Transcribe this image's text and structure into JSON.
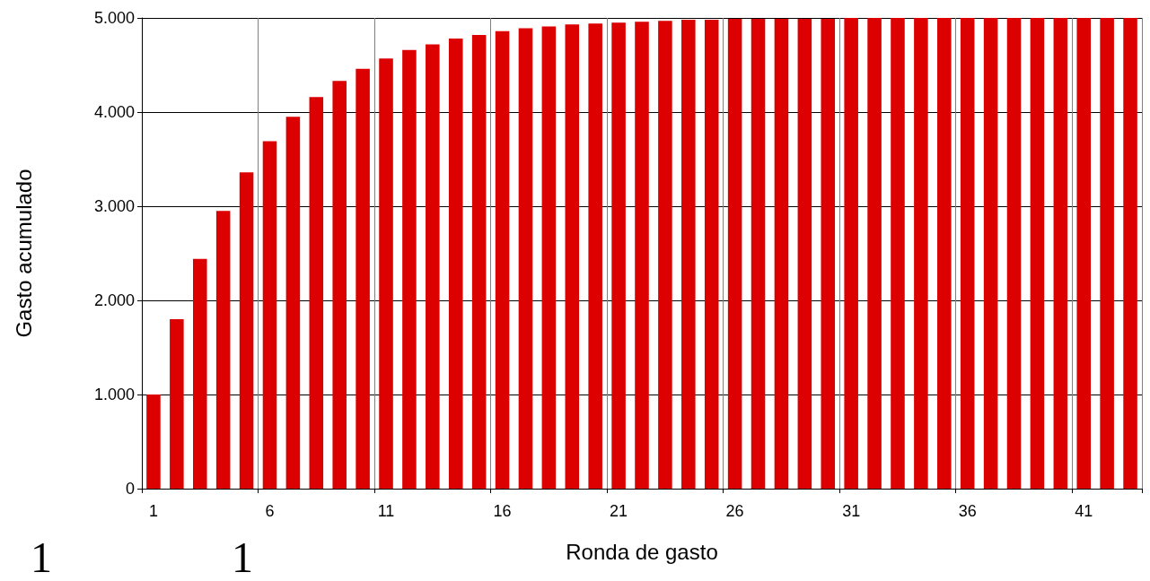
{
  "chart_data": {
    "type": "bar",
    "xlabel": "Ronda de gasto",
    "ylabel": "Gasto acumulado",
    "categories": [
      "1",
      null,
      null,
      null,
      null,
      "6",
      null,
      null,
      null,
      null,
      "11",
      null,
      null,
      null,
      null,
      "16",
      null,
      null,
      null,
      null,
      "21",
      null,
      null,
      null,
      null,
      "26",
      null,
      null,
      null,
      null,
      "31",
      null,
      null,
      null,
      null,
      "36",
      null,
      null,
      null,
      null,
      "41",
      null,
      null
    ],
    "values": [
      1000,
      1800,
      2440,
      2950,
      3360,
      3690,
      3950,
      4160,
      4330,
      4460,
      4570,
      4660,
      4720,
      4780,
      4820,
      4860,
      4890,
      4910,
      4930,
      4940,
      4950,
      4960,
      4970,
      4980,
      4980,
      4990,
      4990,
      4990,
      4990,
      4990,
      5000,
      5000,
      5000,
      5000,
      5000,
      5000,
      5000,
      5000,
      5000,
      5000,
      5000,
      5000,
      5000
    ],
    "color": "#dd0000",
    "ylim": [
      0,
      5000
    ],
    "yticks": [
      {
        "value": 0,
        "label": "0"
      },
      {
        "value": 1000,
        "label": "1.000"
      },
      {
        "value": 2000,
        "label": "2.000"
      },
      {
        "value": 3000,
        "label": "3.000"
      },
      {
        "value": 4000,
        "label": "4.000"
      },
      {
        "value": 5000,
        "label": "5.000"
      }
    ],
    "grid": true,
    "annotations": [
      "1",
      "1"
    ]
  }
}
